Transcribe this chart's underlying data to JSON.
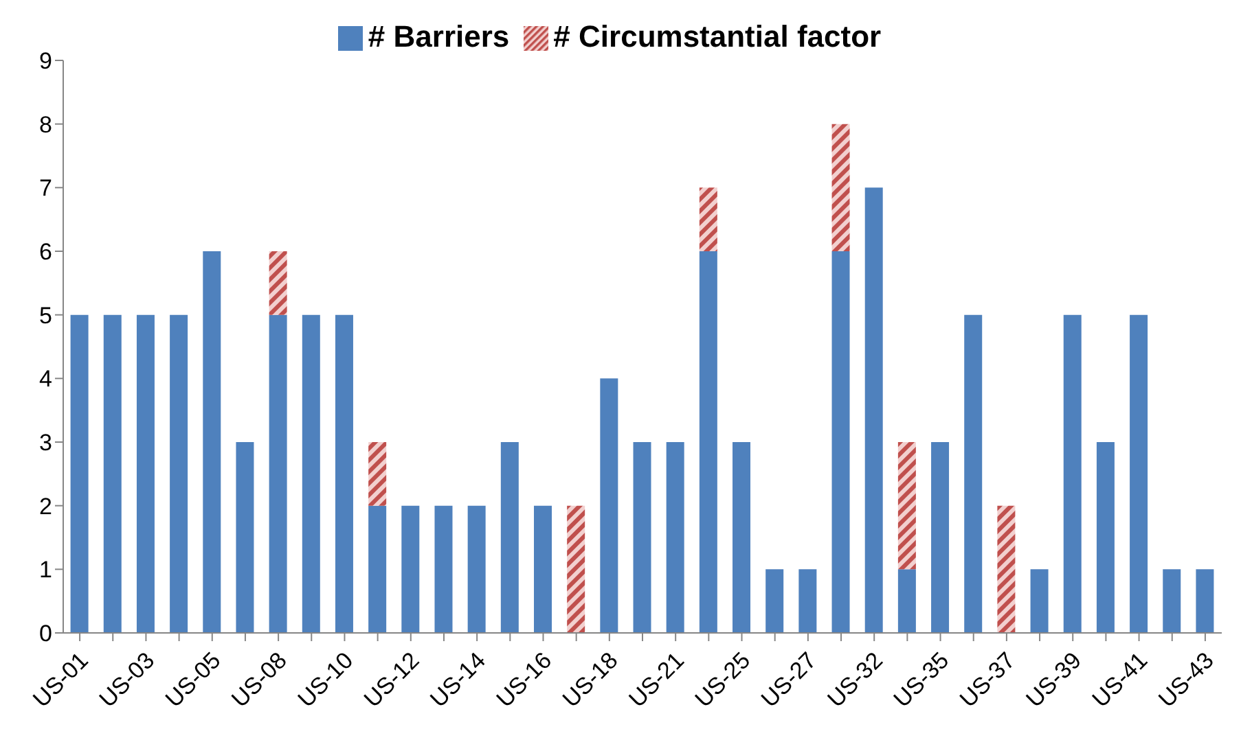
{
  "chart_data": {
    "type": "bar",
    "stacked": true,
    "categories": [
      "US-01",
      null,
      "US-03",
      null,
      "US-05",
      null,
      "US-08",
      null,
      "US-10",
      null,
      "US-12",
      null,
      "US-14",
      null,
      "US-16",
      null,
      "US-18",
      null,
      "US-21",
      null,
      "US-25",
      null,
      "US-27",
      null,
      "US-32",
      null,
      "US-35",
      null,
      "US-37",
      null,
      "US-39",
      null,
      "US-41",
      null,
      "US-43"
    ],
    "series": [
      {
        "name": "# Barriers",
        "color": "#4f81bd",
        "values": [
          5,
          5,
          5,
          5,
          6,
          3,
          5,
          5,
          5,
          2,
          2,
          2,
          2,
          3,
          2,
          0,
          4,
          3,
          3,
          6,
          3,
          1,
          1,
          6,
          7,
          1,
          3,
          5,
          0,
          1,
          5,
          3,
          5,
          1,
          1
        ]
      },
      {
        "name": "# Circumstantial factor",
        "color": "#c0504d",
        "values": [
          0,
          0,
          0,
          0,
          0,
          0,
          1,
          0,
          0,
          1,
          0,
          0,
          0,
          0,
          0,
          2,
          0,
          0,
          0,
          1,
          0,
          0,
          0,
          2,
          0,
          2,
          0,
          0,
          2,
          0,
          0,
          0,
          0,
          0,
          0
        ]
      }
    ],
    "ylim": [
      0,
      9
    ],
    "yticks": [
      0,
      1,
      2,
      3,
      4,
      5,
      6,
      7,
      8,
      9
    ],
    "legend": "top"
  }
}
